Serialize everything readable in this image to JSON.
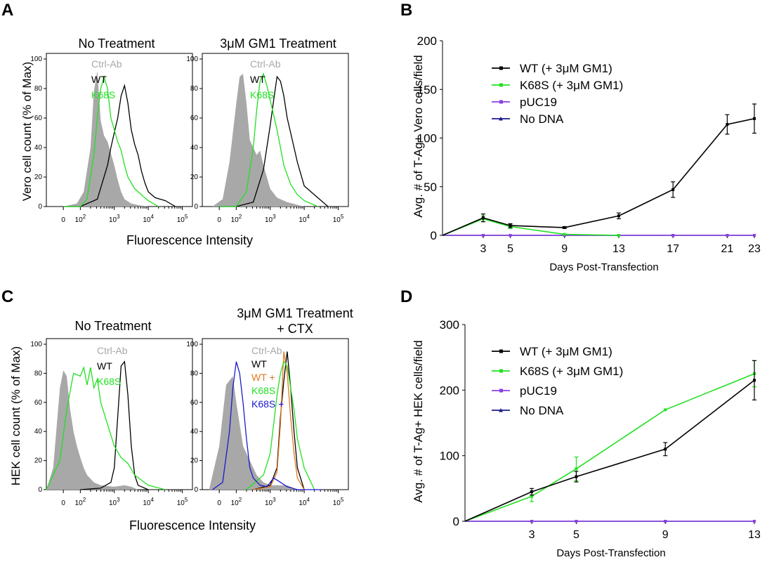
{
  "colors": {
    "ctrl": "#a8a8a8",
    "wt": "#000000",
    "k68s": "#22e022",
    "wt_cxt": "#e07a1f",
    "k68s_ctx": "#1a1ad0",
    "puc19": "#8a3fe0",
    "nodna": "#1c1c8c"
  },
  "chart_data": [
    {
      "type": "area",
      "panel": "A",
      "title": "No Treatment",
      "ylabel": "Vero cell count (% of Max)",
      "xlabel": "Fluorescence Intensity",
      "xscale": "log",
      "x_ticks": [
        "0",
        "10^2",
        "10^3",
        "10^4",
        "10^5"
      ],
      "y_ticks": [
        0,
        20,
        40,
        60,
        80,
        100
      ],
      "ylim": [
        0,
        100
      ],
      "legend": [
        {
          "label": "Ctrl-Ab",
          "color": "#a8a8a8"
        },
        {
          "label": "WT",
          "color": "#000000"
        },
        {
          "label": "K68S",
          "color": "#22e022"
        }
      ],
      "series": [
        {
          "name": "Ctrl-Ab",
          "fill": true,
          "x": [
            1.5,
            1.9,
            2.1,
            2.3,
            2.4,
            2.5,
            2.55,
            2.6,
            2.7,
            2.8,
            2.9,
            3.0,
            3.1,
            3.2,
            3.3,
            3.5,
            3.7,
            4.0
          ],
          "values": [
            0,
            2,
            10,
            40,
            78,
            92,
            75,
            58,
            48,
            44,
            36,
            28,
            18,
            10,
            5,
            2,
            1,
            0
          ]
        },
        {
          "name": "WT",
          "x": [
            1.5,
            2.0,
            2.5,
            2.8,
            2.9,
            3.0,
            3.1,
            3.2,
            3.3,
            3.4,
            3.5,
            3.6,
            3.7,
            3.8,
            3.9,
            4.0,
            4.2,
            4.5,
            4.8
          ],
          "values": [
            0,
            0,
            5,
            28,
            40,
            50,
            60,
            75,
            82,
            70,
            52,
            42,
            35,
            24,
            16,
            10,
            6,
            4,
            0
          ]
        },
        {
          "name": "K68S",
          "x": [
            1.5,
            2.0,
            2.2,
            2.4,
            2.5,
            2.6,
            2.7,
            2.8,
            2.9,
            3.0,
            3.1,
            3.2,
            3.3,
            3.4,
            3.6,
            3.8,
            4.0,
            4.3
          ],
          "values": [
            0,
            0,
            5,
            35,
            60,
            80,
            88,
            80,
            60,
            52,
            44,
            38,
            28,
            20,
            12,
            8,
            4,
            0
          ]
        }
      ]
    },
    {
      "type": "area",
      "panel": "A",
      "title": "3μM GM1 Treatment",
      "xlabel": "Fluorescence Intensity",
      "xscale": "log",
      "x_ticks": [
        "0",
        "10^2",
        "10^3",
        "10^4",
        "10^5"
      ],
      "y_ticks": [
        0,
        20,
        40,
        60,
        80,
        100
      ],
      "ylim": [
        0,
        100
      ],
      "legend": [
        {
          "label": "Ctrl-Ab",
          "color": "#a8a8a8"
        },
        {
          "label": "WT",
          "color": "#000000"
        },
        {
          "label": "K68S",
          "color": "#22e022"
        }
      ],
      "series": [
        {
          "name": "Ctrl-Ab",
          "fill": true,
          "x": [
            1.3,
            1.6,
            1.8,
            2.0,
            2.1,
            2.2,
            2.3,
            2.4,
            2.5,
            2.6,
            2.7,
            2.8,
            2.9,
            3.0,
            3.2,
            3.5,
            4.0
          ],
          "values": [
            0,
            5,
            30,
            70,
            88,
            90,
            70,
            45,
            40,
            35,
            38,
            28,
            20,
            12,
            6,
            3,
            0
          ]
        },
        {
          "name": "WT",
          "x": [
            1.5,
            2.0,
            2.5,
            2.8,
            3.0,
            3.1,
            3.2,
            3.3,
            3.4,
            3.5,
            3.6,
            3.7,
            3.8,
            3.9,
            4.0,
            4.3,
            4.7
          ],
          "values": [
            0,
            0,
            3,
            25,
            55,
            72,
            88,
            85,
            75,
            60,
            50,
            40,
            30,
            22,
            14,
            8,
            0
          ]
        },
        {
          "name": "K68S",
          "x": [
            1.5,
            2.0,
            2.3,
            2.5,
            2.6,
            2.7,
            2.8,
            2.9,
            3.0,
            3.1,
            3.2,
            3.3,
            3.4,
            3.6,
            3.8,
            4.0,
            4.4
          ],
          "values": [
            0,
            0,
            10,
            40,
            65,
            85,
            90,
            82,
            72,
            62,
            52,
            40,
            28,
            15,
            8,
            4,
            0
          ]
        }
      ]
    },
    {
      "type": "line",
      "panel": "B",
      "xlabel": "Days Post-Transfection",
      "ylabel": "Avg. # of T-Ag+ Vero cells/field",
      "x_ticks": [
        3,
        5,
        9,
        13,
        17,
        21,
        23
      ],
      "y_ticks": [
        0,
        50,
        100,
        150,
        200
      ],
      "xlim": [
        0,
        23
      ],
      "ylim": [
        0,
        200
      ],
      "legend_position": "top-left",
      "series": [
        {
          "name": "WT (+ 3μM GM1)",
          "color": "#000000",
          "marker": "square",
          "x": [
            0,
            3,
            5,
            9,
            13,
            17,
            21,
            23
          ],
          "values": [
            0,
            18,
            10,
            8,
            20,
            47,
            114,
            120
          ],
          "errors": [
            0,
            4,
            2,
            1,
            3,
            8,
            10,
            15
          ]
        },
        {
          "name": "K68S (+ 3μM GM1)",
          "color": "#22e022",
          "marker": "diamond",
          "x": [
            0,
            3,
            5,
            9,
            13
          ],
          "values": [
            0,
            17,
            9,
            1,
            0
          ],
          "errors": [
            0,
            3,
            2,
            0,
            0
          ]
        },
        {
          "name": "pUC19",
          "color": "#8a3fe0",
          "marker": "square",
          "x": [
            0,
            3,
            5,
            9,
            13,
            17,
            21,
            23
          ],
          "values": [
            0,
            0,
            0,
            0,
            0,
            0,
            0,
            0
          ]
        },
        {
          "name": "No DNA",
          "color": "#1c1c8c",
          "marker": "triangle",
          "x": [
            0,
            3,
            5,
            9,
            13,
            17,
            21,
            23
          ],
          "values": [
            0,
            0,
            0,
            0,
            0,
            0,
            0,
            0
          ]
        }
      ]
    },
    {
      "type": "area",
      "panel": "C",
      "title": "No Treatment",
      "ylabel": "HEK cell count (% of Max)",
      "xlabel": "Fluorescence Intensity",
      "xscale": "log",
      "x_ticks": [
        "0",
        "10^2",
        "10^3",
        "10^4",
        "10^5"
      ],
      "y_ticks": [
        0,
        20,
        40,
        60,
        80,
        100
      ],
      "ylim": [
        0,
        100
      ],
      "legend": [
        {
          "label": "Ctrl-Ab",
          "color": "#a8a8a8"
        },
        {
          "label": "WT",
          "color": "#000000"
        },
        {
          "label": "K68S",
          "color": "#22e022"
        }
      ],
      "series": [
        {
          "name": "Ctrl-Ab",
          "fill": true,
          "x": [
            1.0,
            1.2,
            1.4,
            1.5,
            1.6,
            1.7,
            1.8,
            1.9,
            2.0,
            2.1,
            2.2,
            2.4,
            2.6,
            3.0,
            3.3,
            3.5,
            3.7
          ],
          "values": [
            0,
            15,
            70,
            82,
            78,
            55,
            40,
            30,
            22,
            15,
            10,
            5,
            3,
            2,
            3,
            2,
            0
          ]
        },
        {
          "name": "WT",
          "x": [
            2.0,
            2.6,
            2.9,
            3.0,
            3.1,
            3.2,
            3.3,
            3.4,
            3.5,
            3.6,
            3.7,
            4.0
          ],
          "values": [
            0,
            1,
            5,
            15,
            50,
            85,
            88,
            65,
            30,
            10,
            3,
            0
          ]
        },
        {
          "name": "K68S",
          "x": [
            1.0,
            1.4,
            1.6,
            1.8,
            2.0,
            2.1,
            2.2,
            2.3,
            2.4,
            2.5,
            2.6,
            2.8,
            3.0,
            3.2,
            3.4,
            3.6,
            4.0,
            4.5
          ],
          "values": [
            0,
            20,
            55,
            80,
            78,
            84,
            72,
            84,
            70,
            76,
            60,
            45,
            30,
            22,
            18,
            10,
            3,
            0
          ]
        }
      ]
    },
    {
      "type": "area",
      "panel": "C",
      "title": "3μM GM1 Treatment + CTX",
      "xlabel": "Fluorescence Intensity",
      "xscale": "log",
      "x_ticks": [
        "0",
        "10^2",
        "10^3",
        "10^4",
        "10^5"
      ],
      "y_ticks": [
        0,
        20,
        40,
        60,
        80,
        100
      ],
      "ylim": [
        0,
        100
      ],
      "legend": [
        {
          "label": "Ctrl-Ab",
          "color": "#a8a8a8"
        },
        {
          "label": "WT",
          "color": "#000000"
        },
        {
          "label": "WT +",
          "color": "#e07a1f"
        },
        {
          "label": "K68S",
          "color": "#22e022"
        },
        {
          "label": "K68S +",
          "color": "#1a1ad0"
        }
      ],
      "series": [
        {
          "name": "Ctrl-Ab",
          "fill": true,
          "x": [
            1.2,
            1.5,
            1.7,
            1.9,
            2.0,
            2.1,
            2.2,
            2.3,
            2.4,
            2.5,
            2.6,
            2.8,
            3.0,
            3.5,
            3.8
          ],
          "values": [
            0,
            30,
            72,
            78,
            60,
            45,
            30,
            25,
            20,
            15,
            10,
            5,
            3,
            3,
            0
          ]
        },
        {
          "name": "WT",
          "x": [
            2.5,
            3.0,
            3.2,
            3.3,
            3.4,
            3.5,
            3.6,
            3.7,
            3.8,
            4.0
          ],
          "values": [
            0,
            3,
            15,
            50,
            75,
            95,
            70,
            40,
            15,
            0
          ]
        },
        {
          "name": "WT +",
          "x": [
            2.5,
            3.0,
            3.2,
            3.3,
            3.4,
            3.5,
            3.6,
            3.7,
            3.8,
            4.0
          ],
          "values": [
            0,
            2,
            12,
            45,
            95,
            80,
            50,
            25,
            8,
            0
          ]
        },
        {
          "name": "K68S",
          "x": [
            2.3,
            2.8,
            3.0,
            3.1,
            3.2,
            3.3,
            3.4,
            3.5,
            3.6,
            3.7,
            3.8,
            4.0,
            4.3
          ],
          "values": [
            0,
            10,
            25,
            45,
            65,
            80,
            88,
            85,
            70,
            55,
            35,
            15,
            0
          ]
        },
        {
          "name": "K68S +",
          "x": [
            1.3,
            1.6,
            1.8,
            1.9,
            2.0,
            2.1,
            2.2,
            2.3,
            2.4,
            2.5,
            2.7,
            2.9,
            3.0,
            3.1,
            3.3,
            3.5,
            3.8,
            4.5
          ],
          "values": [
            0,
            5,
            40,
            70,
            88,
            80,
            60,
            35,
            15,
            8,
            3,
            2,
            5,
            8,
            5,
            2,
            0,
            0
          ]
        }
      ]
    },
    {
      "type": "line",
      "panel": "D",
      "xlabel": "Days Post-Transfection",
      "ylabel": "Avg. # of T-Ag+ HEK cells/field",
      "x_ticks": [
        3,
        5,
        9,
        13
      ],
      "y_ticks": [
        0,
        100,
        200,
        300
      ],
      "xlim": [
        0,
        13
      ],
      "ylim": [
        0,
        300
      ],
      "legend_position": "top-left",
      "series": [
        {
          "name": "WT (+ 3μM GM1)",
          "color": "#000000",
          "marker": "square",
          "x": [
            0,
            3,
            5,
            9,
            13
          ],
          "values": [
            0,
            45,
            68,
            110,
            215
          ],
          "errors": [
            0,
            5,
            8,
            10,
            30
          ]
        },
        {
          "name": "K68S (+ 3μM GM1)",
          "color": "#22e022",
          "marker": "diamond",
          "x": [
            0,
            3,
            5,
            9,
            13
          ],
          "values": [
            0,
            38,
            80,
            170,
            225
          ],
          "errors": [
            0,
            8,
            18,
            0,
            20
          ]
        },
        {
          "name": "pUC19",
          "color": "#8a3fe0",
          "marker": "square",
          "x": [
            0,
            3,
            5,
            9,
            13
          ],
          "values": [
            0,
            0,
            0,
            0,
            0
          ]
        },
        {
          "name": "No DNA",
          "color": "#1c1c8c",
          "marker": "triangle",
          "x": [
            0,
            3,
            5,
            9,
            13
          ],
          "values": [
            0,
            0,
            0,
            0,
            0
          ]
        }
      ]
    }
  ],
  "panel_labels": [
    "A",
    "B",
    "C",
    "D"
  ],
  "titles": {
    "a1": "No Treatment",
    "a2": "3μM GM1 Treatment",
    "c1": "No Treatment",
    "c2_line1": "3μM GM1 Treatment",
    "c2_line2": "+ CTX"
  },
  "axis_labels": {
    "a_y": "Vero cell count (% of Max)",
    "a_x": "Fluorescence Intensity",
    "c_y": "HEK cell count (% of Max)",
    "c_x": "Fluorescence Intensity",
    "b_y": "Avg. # of T-Ag+ Vero cells/field",
    "b_x": "Days Post-Transfection",
    "d_y": "Avg. # of T-Ag+ HEK cells/field",
    "d_x": "Days Post-Transfection"
  }
}
